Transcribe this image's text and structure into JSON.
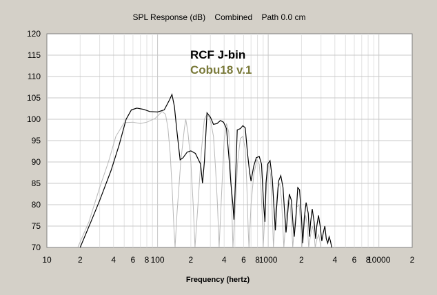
{
  "chart_data": {
    "type": "line",
    "title": "SPL Response (dB)    Combined    Path 0.0 cm",
    "xlabel": "Frequency (hertz)",
    "ylabel": "",
    "xscale": "log",
    "xlim": [
      10,
      20000
    ],
    "ylim": [
      70,
      120
    ],
    "grid": true,
    "legend_position": "top-center",
    "x_tick_labels": [
      {
        "value": 10,
        "label": "10"
      },
      {
        "value": 20,
        "label": "2"
      },
      {
        "value": 40,
        "label": "4"
      },
      {
        "value": 60,
        "label": "6"
      },
      {
        "value": 80,
        "label": "8"
      },
      {
        "value": 100,
        "label": "100"
      },
      {
        "value": 200,
        "label": "2"
      },
      {
        "value": 400,
        "label": "4"
      },
      {
        "value": 600,
        "label": "6"
      },
      {
        "value": 800,
        "label": "8"
      },
      {
        "value": 1000,
        "label": "1000"
      },
      {
        "value": 2000,
        "label": "2"
      },
      {
        "value": 4000,
        "label": "4"
      },
      {
        "value": 6000,
        "label": "6"
      },
      {
        "value": 8000,
        "label": "8"
      },
      {
        "value": 10000,
        "label": "10000"
      },
      {
        "value": 20000,
        "label": "2"
      }
    ],
    "y_tick_labels": [
      {
        "value": 70,
        "label": "70"
      },
      {
        "value": 75,
        "label": "75"
      },
      {
        "value": 80,
        "label": "80"
      },
      {
        "value": 85,
        "label": "85"
      },
      {
        "value": 90,
        "label": "90"
      },
      {
        "value": 95,
        "label": "95"
      },
      {
        "value": 100,
        "label": "100"
      },
      {
        "value": 105,
        "label": "105"
      },
      {
        "value": 110,
        "label": "110"
      },
      {
        "value": 115,
        "label": "115"
      },
      {
        "value": 120,
        "label": "120"
      }
    ],
    "series": [
      {
        "name": "RCF J-bin",
        "color": "#000000",
        "points": [
          [
            20,
            70
          ],
          [
            25,
            76
          ],
          [
            30,
            81
          ],
          [
            38,
            88
          ],
          [
            45,
            94
          ],
          [
            52,
            100
          ],
          [
            58,
            102.2
          ],
          [
            65,
            102.6
          ],
          [
            75,
            102.3
          ],
          [
            85,
            101.8
          ],
          [
            100,
            101.7
          ],
          [
            115,
            102.2
          ],
          [
            128,
            104.5
          ],
          [
            135,
            105.8
          ],
          [
            142,
            103
          ],
          [
            150,
            97
          ],
          [
            160,
            90.5
          ],
          [
            170,
            91
          ],
          [
            185,
            92.3
          ],
          [
            200,
            92.6
          ],
          [
            220,
            92
          ],
          [
            245,
            89.5
          ],
          [
            255,
            85
          ],
          [
            265,
            90
          ],
          [
            280,
            101.5
          ],
          [
            300,
            100.5
          ],
          [
            320,
            98.8
          ],
          [
            345,
            99
          ],
          [
            370,
            99.7
          ],
          [
            395,
            99.3
          ],
          [
            420,
            97.8
          ],
          [
            445,
            90
          ],
          [
            460,
            85
          ],
          [
            480,
            80
          ],
          [
            490,
            76.5
          ],
          [
            505,
            85
          ],
          [
            525,
            97.5
          ],
          [
            560,
            97.8
          ],
          [
            590,
            98.5
          ],
          [
            620,
            98
          ],
          [
            650,
            92
          ],
          [
            680,
            87.5
          ],
          [
            700,
            85.5
          ],
          [
            740,
            89
          ],
          [
            780,
            91
          ],
          [
            830,
            91.3
          ],
          [
            870,
            89.5
          ],
          [
            910,
            80
          ],
          [
            935,
            76
          ],
          [
            955,
            85
          ],
          [
            990,
            89.5
          ],
          [
            1040,
            90.3
          ],
          [
            1090,
            86
          ],
          [
            1130,
            79
          ],
          [
            1160,
            74
          ],
          [
            1190,
            79
          ],
          [
            1240,
            85.5
          ],
          [
            1300,
            86.8
          ],
          [
            1360,
            84
          ],
          [
            1420,
            76.5
          ],
          [
            1450,
            73.5
          ],
          [
            1490,
            77
          ],
          [
            1550,
            82.5
          ],
          [
            1620,
            81
          ],
          [
            1680,
            75
          ],
          [
            1720,
            72.5
          ],
          [
            1780,
            77
          ],
          [
            1850,
            84
          ],
          [
            1920,
            83.5
          ],
          [
            2000,
            77
          ],
          [
            2050,
            71
          ],
          [
            2120,
            77
          ],
          [
            2200,
            80.5
          ],
          [
            2300,
            78
          ],
          [
            2360,
            72.5
          ],
          [
            2420,
            76
          ],
          [
            2500,
            79
          ],
          [
            2600,
            76
          ],
          [
            2680,
            72
          ],
          [
            2750,
            75
          ],
          [
            2850,
            77.5
          ],
          [
            2950,
            75
          ],
          [
            3050,
            71.5
          ],
          [
            3150,
            73.5
          ],
          [
            3250,
            75
          ],
          [
            3350,
            72
          ],
          [
            3450,
            71
          ],
          [
            3550,
            72.5
          ],
          [
            3650,
            71.5
          ],
          [
            3750,
            70
          ]
        ]
      },
      {
        "name": "Cobu18 v.1",
        "color": "#7a7a3a",
        "points": [
          [
            19,
            70
          ],
          [
            24,
            76
          ],
          [
            30,
            84
          ],
          [
            36,
            90
          ],
          [
            42,
            96
          ],
          [
            50,
            99.2
          ],
          [
            60,
            99.3
          ],
          [
            70,
            99
          ],
          [
            80,
            99.3
          ],
          [
            95,
            100.2
          ],
          [
            110,
            101.8
          ],
          [
            118,
            101.2
          ],
          [
            124,
            98
          ],
          [
            130,
            92
          ],
          [
            136,
            83
          ],
          [
            141,
            74
          ],
          [
            144,
            70
          ],
          [
            150,
            78
          ],
          [
            162,
            90
          ],
          [
            175,
            98
          ],
          [
            180,
            100
          ],
          [
            188,
            97
          ],
          [
            200,
            90
          ],
          [
            210,
            80
          ],
          [
            218,
            70
          ],
          [
            232,
            80
          ],
          [
            250,
            93
          ],
          [
            265,
            100
          ],
          [
            278,
            101
          ],
          [
            292,
            100.5
          ],
          [
            305,
            99
          ],
          [
            320,
            96
          ],
          [
            335,
            88
          ],
          [
            348,
            80
          ],
          [
            360,
            70
          ],
          [
            380,
            83
          ],
          [
            400,
            95
          ],
          [
            420,
            99
          ],
          [
            440,
            97
          ],
          [
            455,
            90
          ],
          [
            468,
            80
          ],
          [
            480,
            70
          ],
          [
            505,
            80
          ],
          [
            530,
            90
          ],
          [
            560,
            95.5
          ],
          [
            590,
            96
          ],
          [
            620,
            93
          ],
          [
            640,
            85
          ],
          [
            660,
            74
          ],
          [
            670,
            70
          ],
          [
            700,
            80
          ],
          [
            740,
            87
          ],
          [
            790,
            90.5
          ],
          [
            830,
            89.5
          ],
          [
            860,
            84
          ],
          [
            885,
            77
          ],
          [
            900,
            70
          ],
          [
            935,
            78
          ],
          [
            975,
            86
          ],
          [
            1010,
            89.5
          ],
          [
            1050,
            87
          ],
          [
            1080,
            80
          ],
          [
            1105,
            73
          ],
          [
            1115,
            70
          ],
          [
            1160,
            78
          ],
          [
            1220,
            84
          ],
          [
            1270,
            85
          ],
          [
            1320,
            81
          ],
          [
            1360,
            74
          ],
          [
            1385,
            70
          ],
          [
            1440,
            76
          ],
          [
            1510,
            81
          ],
          [
            1580,
            80
          ],
          [
            1630,
            75
          ],
          [
            1665,
            70
          ],
          [
            1730,
            75
          ],
          [
            1810,
            79.5
          ],
          [
            1900,
            80
          ],
          [
            1970,
            75
          ],
          [
            2010,
            70
          ],
          [
            2090,
            74
          ],
          [
            2180,
            77.5
          ],
          [
            2260,
            75
          ],
          [
            2320,
            70
          ],
          [
            2420,
            73
          ],
          [
            2510,
            75
          ],
          [
            2600,
            73
          ],
          [
            2660,
            70
          ],
          [
            2760,
            72
          ],
          [
            2860,
            73
          ],
          [
            2950,
            71
          ],
          [
            3000,
            70
          ]
        ]
      }
    ]
  }
}
